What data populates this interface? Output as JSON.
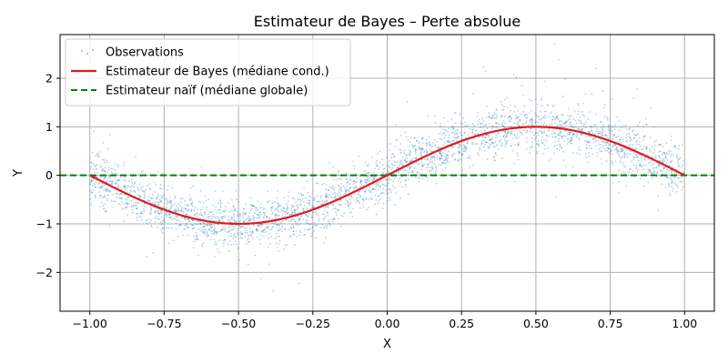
{
  "chart_data": {
    "type": "scatter",
    "title": "Estimateur de Bayes – Perte absolue",
    "xlabel": "X",
    "ylabel": "Y",
    "xlim": [
      -1.1,
      1.1
    ],
    "ylim": [
      -2.8,
      2.9
    ],
    "xticks": [
      -1.0,
      -0.75,
      -0.5,
      -0.25,
      0.0,
      0.25,
      0.5,
      0.75,
      1.0
    ],
    "xtick_labels": [
      "−1.00",
      "−0.75",
      "−0.50",
      "−0.25",
      "0.00",
      "0.25",
      "0.50",
      "0.75",
      "1.00"
    ],
    "yticks": [
      -2,
      -1,
      0,
      1,
      2
    ],
    "ytick_labels": [
      "−2",
      "−1",
      "0",
      "1",
      "2"
    ],
    "grid": true,
    "legend_position": "top-left",
    "series": [
      {
        "name": "Observations",
        "kind": "scatter",
        "color": "#1f77b4",
        "description_model": "y = sin(pi*x) + noise",
        "x_range": [
          -1.0,
          1.0
        ],
        "noise_spread": 0.25
      },
      {
        "name": "Estimateur de Bayes (médiane cond.)",
        "kind": "line",
        "color": "#e41a1c",
        "x": [
          -1.0,
          -0.9,
          -0.8,
          -0.7,
          -0.6,
          -0.5,
          -0.4,
          -0.3,
          -0.2,
          -0.1,
          0.0,
          0.1,
          0.2,
          0.3,
          0.4,
          0.5,
          0.6,
          0.7,
          0.8,
          0.9,
          1.0
        ],
        "y": [
          0.0,
          -0.31,
          -0.59,
          -0.81,
          -0.95,
          -1.0,
          -0.95,
          -0.81,
          -0.59,
          -0.31,
          0.0,
          0.31,
          0.59,
          0.81,
          0.95,
          1.0,
          0.95,
          0.81,
          0.59,
          0.31,
          0.0
        ]
      },
      {
        "name": "Estimateur naïf (médiane globale)",
        "kind": "hline",
        "color": "#008000",
        "y": 0.0
      }
    ]
  }
}
